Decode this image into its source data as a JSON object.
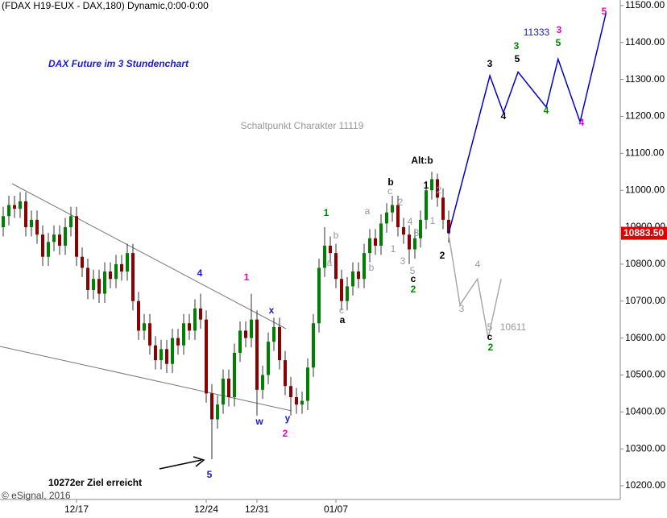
{
  "chart_data": {
    "type": "candlestick",
    "header": "(FDAX H19-EUX - DAX,180) Dynamic,0:00-0:00",
    "title": "DAX Future im 3 Stundenchart",
    "credit": "© eSignal, 2016",
    "callout": "10272er Ziel erreicht",
    "up_color": "#008000",
    "down_color": "#8b0000",
    "categories": [
      null,
      null,
      null,
      null,
      null,
      null,
      null,
      null,
      null,
      null,
      null,
      null,
      null,
      "12/17",
      null,
      null,
      null,
      null,
      null,
      null,
      null,
      null,
      null,
      null,
      null,
      null,
      null,
      null,
      null,
      null,
      null,
      null,
      null,
      null,
      null,
      null,
      "12/24",
      null,
      null,
      null,
      null,
      null,
      null,
      null,
      null,
      "12/31",
      null,
      null,
      null,
      null,
      null,
      null,
      null,
      null,
      null,
      null,
      null,
      null,
      null,
      "01/07",
      null,
      null,
      null,
      null,
      null,
      null,
      null,
      null,
      null,
      null,
      null,
      null,
      null,
      null,
      null,
      null,
      null,
      null,
      null,
      null
    ],
    "open": [
      10900,
      10930,
      10960,
      10950,
      10970,
      10900,
      10920,
      10880,
      10820,
      10860,
      10880,
      10850,
      10900,
      10930,
      10820,
      10790,
      10730,
      10760,
      10720,
      10780,
      10760,
      10800,
      10780,
      10830,
      10700,
      10620,
      10640,
      10580,
      10540,
      10570,
      10530,
      10600,
      10580,
      10640,
      10620,
      10680,
      10650,
      10450,
      10380,
      10420,
      10490,
      10440,
      10560,
      10620,
      10600,
      10650,
      10460,
      10500,
      10590,
      10630,
      10540,
      10470,
      10440,
      10420,
      10430,
      10520,
      10640,
      10790,
      10850,
      10830,
      10760,
      10700,
      10740,
      10780,
      10760,
      10830,
      10870,
      10850,
      10910,
      10940,
      10960,
      10900,
      10880,
      10840,
      10870,
      10920,
      11000,
      11030,
      10980,
      10920
    ],
    "high": [
      10955,
      10985,
      10985,
      10995,
      10995,
      10945,
      10945,
      10905,
      10885,
      10905,
      10905,
      10925,
      10955,
      10955,
      10845,
      10815,
      10785,
      10785,
      10805,
      10805,
      10825,
      10825,
      10855,
      10855,
      10725,
      10665,
      10665,
      10605,
      10595,
      10595,
      10625,
      10625,
      10665,
      10665,
      10705,
      10720,
      10675,
      10475,
      10445,
      10515,
      10515,
      10585,
      10645,
      10645,
      10720,
      10675,
      10525,
      10615,
      10655,
      10655,
      10565,
      10495,
      10465,
      10455,
      10545,
      10665,
      10815,
      10900,
      10875,
      10855,
      10785,
      10765,
      10805,
      10805,
      10855,
      10895,
      10895,
      10935,
      10965,
      10985,
      10985,
      10925,
      10905,
      10895,
      10945,
      11025,
      11050,
      11045,
      11005,
      10945
    ],
    "low": [
      10875,
      10905,
      10925,
      10925,
      10875,
      10875,
      10855,
      10795,
      10795,
      10835,
      10825,
      10825,
      10875,
      10795,
      10765,
      10705,
      10705,
      10695,
      10695,
      10735,
      10735,
      10755,
      10755,
      10675,
      10595,
      10595,
      10555,
      10515,
      10515,
      10505,
      10505,
      10555,
      10555,
      10595,
      10595,
      10625,
      10425,
      10272,
      10355,
      10395,
      10415,
      10415,
      10535,
      10575,
      10575,
      10390,
      10435,
      10475,
      10565,
      10515,
      10445,
      10390,
      10395,
      10395,
      10405,
      10495,
      10615,
      10765,
      10805,
      10735,
      10675,
      10675,
      10715,
      10735,
      10735,
      10805,
      10825,
      10825,
      10885,
      10915,
      10875,
      10855,
      10800,
      10815,
      10845,
      10895,
      10975,
      10955,
      10895,
      10858
    ],
    "close": [
      10930,
      10960,
      10950,
      10970,
      10900,
      10920,
      10880,
      10820,
      10860,
      10880,
      10850,
      10900,
      10930,
      10820,
      10790,
      10730,
      10760,
      10720,
      10780,
      10760,
      10800,
      10780,
      10830,
      10700,
      10620,
      10640,
      10580,
      10540,
      10570,
      10530,
      10600,
      10580,
      10640,
      10620,
      10680,
      10650,
      10450,
      10380,
      10420,
      10490,
      10440,
      10560,
      10620,
      10600,
      10650,
      10460,
      10500,
      10590,
      10630,
      10540,
      10470,
      10440,
      10420,
      10430,
      10520,
      10640,
      10790,
      10850,
      10830,
      10760,
      10700,
      10740,
      10780,
      10760,
      10830,
      10870,
      10850,
      10910,
      10940,
      10960,
      10900,
      10880,
      10840,
      10870,
      10920,
      11000,
      11030,
      10980,
      10920,
      10883.5
    ],
    "last": {
      "value": 10883.5,
      "label": "10883.50"
    },
    "projections": [
      {
        "color": "#0000cc",
        "x": [
          79,
          86.3,
          88.7,
          91.3,
          96.3,
          98.4,
          102.3,
          106.9
        ],
        "values": [
          10883.5,
          11310,
          11210,
          11320,
          11225,
          11355,
          11185,
          11480
        ]
      },
      {
        "color": "#aaaaaa",
        "x": [
          79,
          81,
          84.1,
          86,
          88.3
        ],
        "values": [
          10880,
          10690,
          10760,
          10600,
          10760
        ]
      }
    ],
    "annotations": [
      {
        "text": "4",
        "color": "#1a1acc"
      },
      {
        "text": "1",
        "color": "#ee00cc"
      },
      {
        "text": "x",
        "color": "#1a1acc"
      },
      {
        "text": "w",
        "color": "#1a1acc"
      },
      {
        "text": "y",
        "color": "#1a1acc"
      },
      {
        "text": "2",
        "color": "#ee00cc"
      },
      {
        "text": "5",
        "color": "#1a1acc"
      },
      {
        "text": "1",
        "color": "#008800"
      },
      {
        "text": "b",
        "color": "#999999"
      },
      {
        "text": "a",
        "color": "#999999"
      },
      {
        "text": "c",
        "color": "#999999"
      },
      {
        "text": "a",
        "color": "#000000"
      },
      {
        "text": "a",
        "color": "#999999"
      },
      {
        "text": "b",
        "color": "#999999"
      },
      {
        "text": "b",
        "color": "#000000"
      },
      {
        "text": "c",
        "color": "#999999"
      },
      {
        "text": "2",
        "color": "#999999"
      },
      {
        "text": "4",
        "color": "#999999"
      },
      {
        "text": "1",
        "color": "#999999"
      },
      {
        "text": "3",
        "color": "#999999"
      },
      {
        "text": "3",
        "color": "#999999"
      },
      {
        "text": "5",
        "color": "#999999"
      },
      {
        "text": "c",
        "color": "#000000"
      },
      {
        "text": "2",
        "color": "#008800"
      },
      {
        "text": "Alt:b",
        "color": "#000000"
      },
      {
        "text": "1",
        "color": "#000000"
      },
      {
        "text": "2",
        "color": "#999999"
      },
      {
        "text": "1",
        "color": "#999999"
      },
      {
        "text": "2",
        "color": "#000000"
      },
      {
        "text": "3",
        "color": "#000000"
      },
      {
        "text": "4",
        "color": "#000000"
      },
      {
        "text": "3",
        "color": "#008800"
      },
      {
        "text": "5",
        "color": "#000000"
      },
      {
        "text": "11333",
        "color": "#1a1acc"
      },
      {
        "text": "3",
        "color": "#ee00cc"
      },
      {
        "text": "5",
        "color": "#008800"
      },
      {
        "text": "4",
        "color": "#008800"
      },
      {
        "text": "4",
        "color": "#ee00cc"
      },
      {
        "text": "5",
        "color": "#ee00cc"
      },
      {
        "text": "3",
        "color": "#999999"
      },
      {
        "text": "4",
        "color": "#999999"
      },
      {
        "text": "5",
        "color": "#999999"
      },
      {
        "text": "c",
        "color": "#000000"
      },
      {
        "text": "2",
        "color": "#008800"
      },
      {
        "text": "10611",
        "color": "#999999"
      },
      {
        "text": "Schaltpunkt Charakter 11119",
        "color": "#999999"
      }
    ],
    "ylim": [
      10163,
      11515
    ],
    "yticks": [
      {
        "value": 10200,
        "label": "10200.00"
      },
      {
        "value": 10300,
        "label": "10300.00"
      },
      {
        "value": 10400,
        "label": "10400.00"
      },
      {
        "value": 10500,
        "label": "10500.00"
      },
      {
        "value": 10600,
        "label": "10600.00"
      },
      {
        "value": 10700,
        "label": "10700.00"
      },
      {
        "value": 10800,
        "label": "10800.00"
      },
      {
        "value": 10900,
        "label": "10900.00"
      },
      {
        "value": 11000,
        "label": "11000.00"
      },
      {
        "value": 11100,
        "label": "11100.00"
      },
      {
        "value": 11200,
        "label": "11200.00"
      },
      {
        "value": 11300,
        "label": "11300.00"
      },
      {
        "value": 11400,
        "label": "11400.00"
      },
      {
        "value": 11500,
        "label": "11500.00"
      }
    ]
  }
}
